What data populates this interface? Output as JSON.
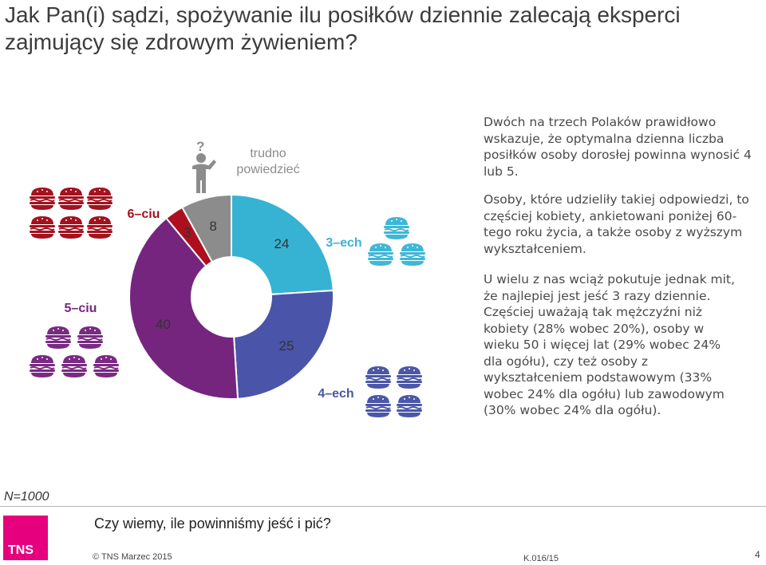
{
  "title": "Jak Pan(i) sądzi, spożywanie ilu posiłków dziennie zalecają eksperci zajmujący się zdrowym żywieniem?",
  "paragraphs": [
    "Dwóch na trzech Polaków prawidłowo wskazuje, że optymalna dzienna liczba posiłków osoby dorosłej powinna wynosić 4 lub 5.",
    "Osoby, które udzieliły takiej odpowiedzi, to częściej kobiety, ankietowani poniżej 60-tego roku życia, a także osoby z wyższym wykształceniem.",
    "U wielu z nas wciąż pokutuje jednak mit, że najlepiej jest jeść 3 razy dziennie. Częściej uważają tak mężczyźni niż kobiety (28% wobec 20%), osoby w wieku 50 i więcej lat (29% wobec 24% dla ogółu), czy też osoby z wykształceniem podstawowym (33% wobec 24% dla ogółu) lub zawodowym (30% wobec 24% dla ogółu)."
  ],
  "chart_data": {
    "type": "pie",
    "variant": "donut",
    "unit": "%",
    "slices": [
      {
        "label": "3–ech",
        "value": 24,
        "color": "#36b3d3",
        "icon_color": "#3fb7d6"
      },
      {
        "label": "4–ech",
        "value": 25,
        "color": "#4a54a8",
        "icon_color": "#4b57a8"
      },
      {
        "label": "5–ciu",
        "value": 40,
        "color": "#76257f",
        "icon_color": "#7a2a82"
      },
      {
        "label": "6–ciu",
        "value": 3,
        "color": "#ad0f1e",
        "icon_color": "#a3121f"
      },
      {
        "label": "trudno powiedzieć",
        "value": 8,
        "color": "#8c8c8c",
        "icon_color": "#8c8c8c"
      }
    ],
    "category_labels": {
      "c3": "3–ech",
      "c4": "4–ech",
      "c5": "5–ciu",
      "c6": "6–ciu",
      "dk_line1": "trudno",
      "dk_line2": "powiedzieć"
    },
    "icons": {
      "burger": "burger-icon",
      "question": "question-person-icon"
    }
  },
  "footer": {
    "n_label": "N=1000",
    "logo_text": "TNS",
    "slogan": "Czy wiemy, ile powinniśmy jeść i pić?",
    "copyright": "© TNS Marzec 2015",
    "code": "K.016/15",
    "page_number": "4"
  }
}
